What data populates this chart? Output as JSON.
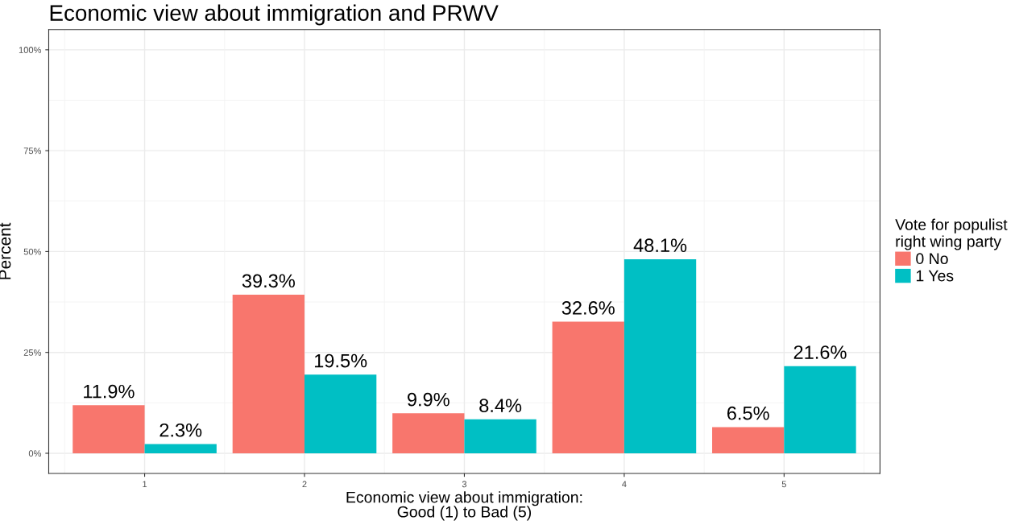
{
  "chart_data": {
    "type": "bar",
    "title": "Economic view about immigration and PRWV",
    "xlabel": "Economic view about immigration:\nGood (1) to Bad (5)",
    "ylabel": "Percent",
    "legend_title": "Vote for populist\nright wing party",
    "legend": "right",
    "categories": [
      "1",
      "2",
      "3",
      "4",
      "5"
    ],
    "series": [
      {
        "name": "0 No",
        "color": "#f8766d",
        "values": [
          11.9,
          39.3,
          9.9,
          32.6,
          6.5
        ],
        "value_labels": [
          "11.9%",
          "39.3%",
          "9.9%",
          "32.6%",
          "6.5%"
        ]
      },
      {
        "name": "1 Yes",
        "color": "#00bfc4",
        "values": [
          2.3,
          19.5,
          8.4,
          48.1,
          21.6
        ],
        "value_labels": [
          "2.3%",
          "19.5%",
          "8.4%",
          "48.1%",
          "21.6%"
        ]
      }
    ],
    "ylim": [
      -5,
      105
    ],
    "yticks": [
      {
        "value": 0,
        "label": "0%"
      },
      {
        "value": 25,
        "label": "25%"
      },
      {
        "value": 50,
        "label": "50%"
      },
      {
        "value": 75,
        "label": "75%"
      },
      {
        "value": 100,
        "label": "100%"
      }
    ],
    "grid": true
  }
}
